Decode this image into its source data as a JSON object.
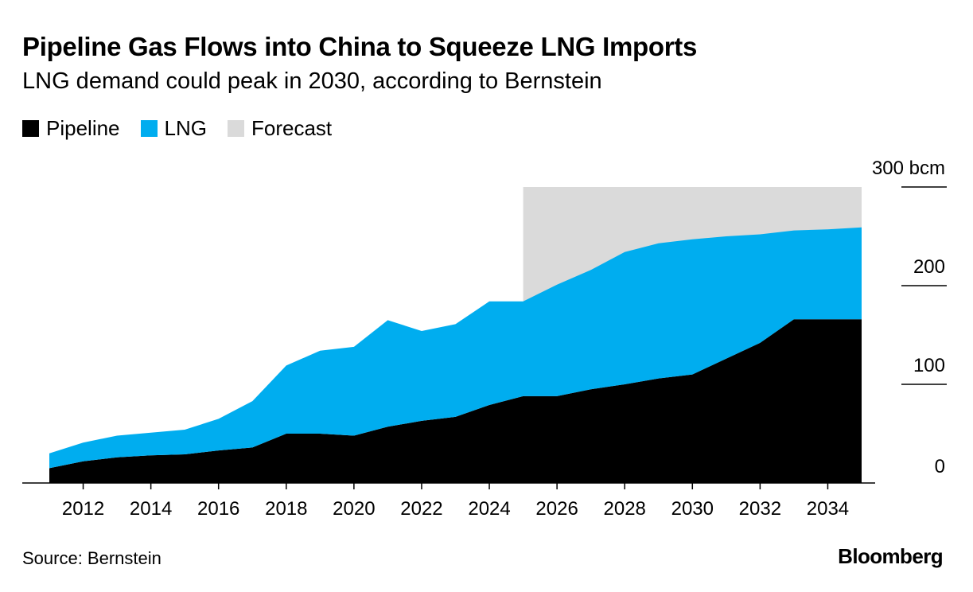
{
  "header": {
    "title": "Pipeline Gas Flows into China to Squeeze LNG Imports",
    "subtitle": "LNG demand could peak in 2030, according to Bernstein"
  },
  "legend": [
    {
      "label": "Pipeline",
      "color": "#000000"
    },
    {
      "label": "LNG",
      "color": "#00adef"
    },
    {
      "label": "Forecast",
      "color": "#dadada"
    }
  ],
  "footer": {
    "source": "Source: Bernstein",
    "logo": "Bloomberg"
  },
  "chart_data": {
    "type": "area",
    "stacked": true,
    "x": [
      2011,
      2012,
      2013,
      2014,
      2015,
      2016,
      2017,
      2018,
      2019,
      2020,
      2021,
      2022,
      2023,
      2024,
      2025,
      2026,
      2027,
      2028,
      2029,
      2030,
      2031,
      2032,
      2033,
      2034,
      2035
    ],
    "series": [
      {
        "name": "Pipeline",
        "color": "#000000",
        "values": [
          15,
          22,
          26,
          28,
          29,
          33,
          36,
          50,
          50,
          48,
          57,
          63,
          67,
          79,
          88,
          88,
          95,
          100,
          106,
          110,
          126,
          142,
          166,
          166,
          166
        ]
      },
      {
        "name": "LNG",
        "color": "#00adef",
        "values": [
          15,
          19,
          22,
          23,
          25,
          32,
          47,
          69,
          84,
          90,
          108,
          91,
          94,
          105,
          96,
          113,
          121,
          134,
          137,
          137,
          124,
          110,
          90,
          91,
          93
        ]
      }
    ],
    "forecast": {
      "label": "Forecast",
      "from": 2025,
      "to": 2035,
      "top": 300,
      "color": "#dadada"
    },
    "xticks": [
      2012,
      2014,
      2016,
      2018,
      2020,
      2022,
      2024,
      2026,
      2028,
      2030,
      2032,
      2034
    ],
    "xtick_labels": [
      "2012",
      "2014",
      "2016",
      "2018",
      "2020",
      "2022",
      "2024",
      "2026",
      "2028",
      "2030",
      "2032",
      "2034"
    ],
    "yticks": [
      0,
      100,
      200,
      300
    ],
    "ytick_labels": [
      "0",
      "100",
      "200",
      "300 bcm"
    ],
    "ylim": [
      0,
      300
    ],
    "xlim": [
      2011,
      2035
    ],
    "title": "Pipeline Gas Flows into China to Squeeze LNG Imports",
    "subtitle": "LNG demand could peak in 2030, according to Bernstein",
    "xlabel": "",
    "ylabel": "",
    "legend_position": "top-left",
    "grid": false
  }
}
